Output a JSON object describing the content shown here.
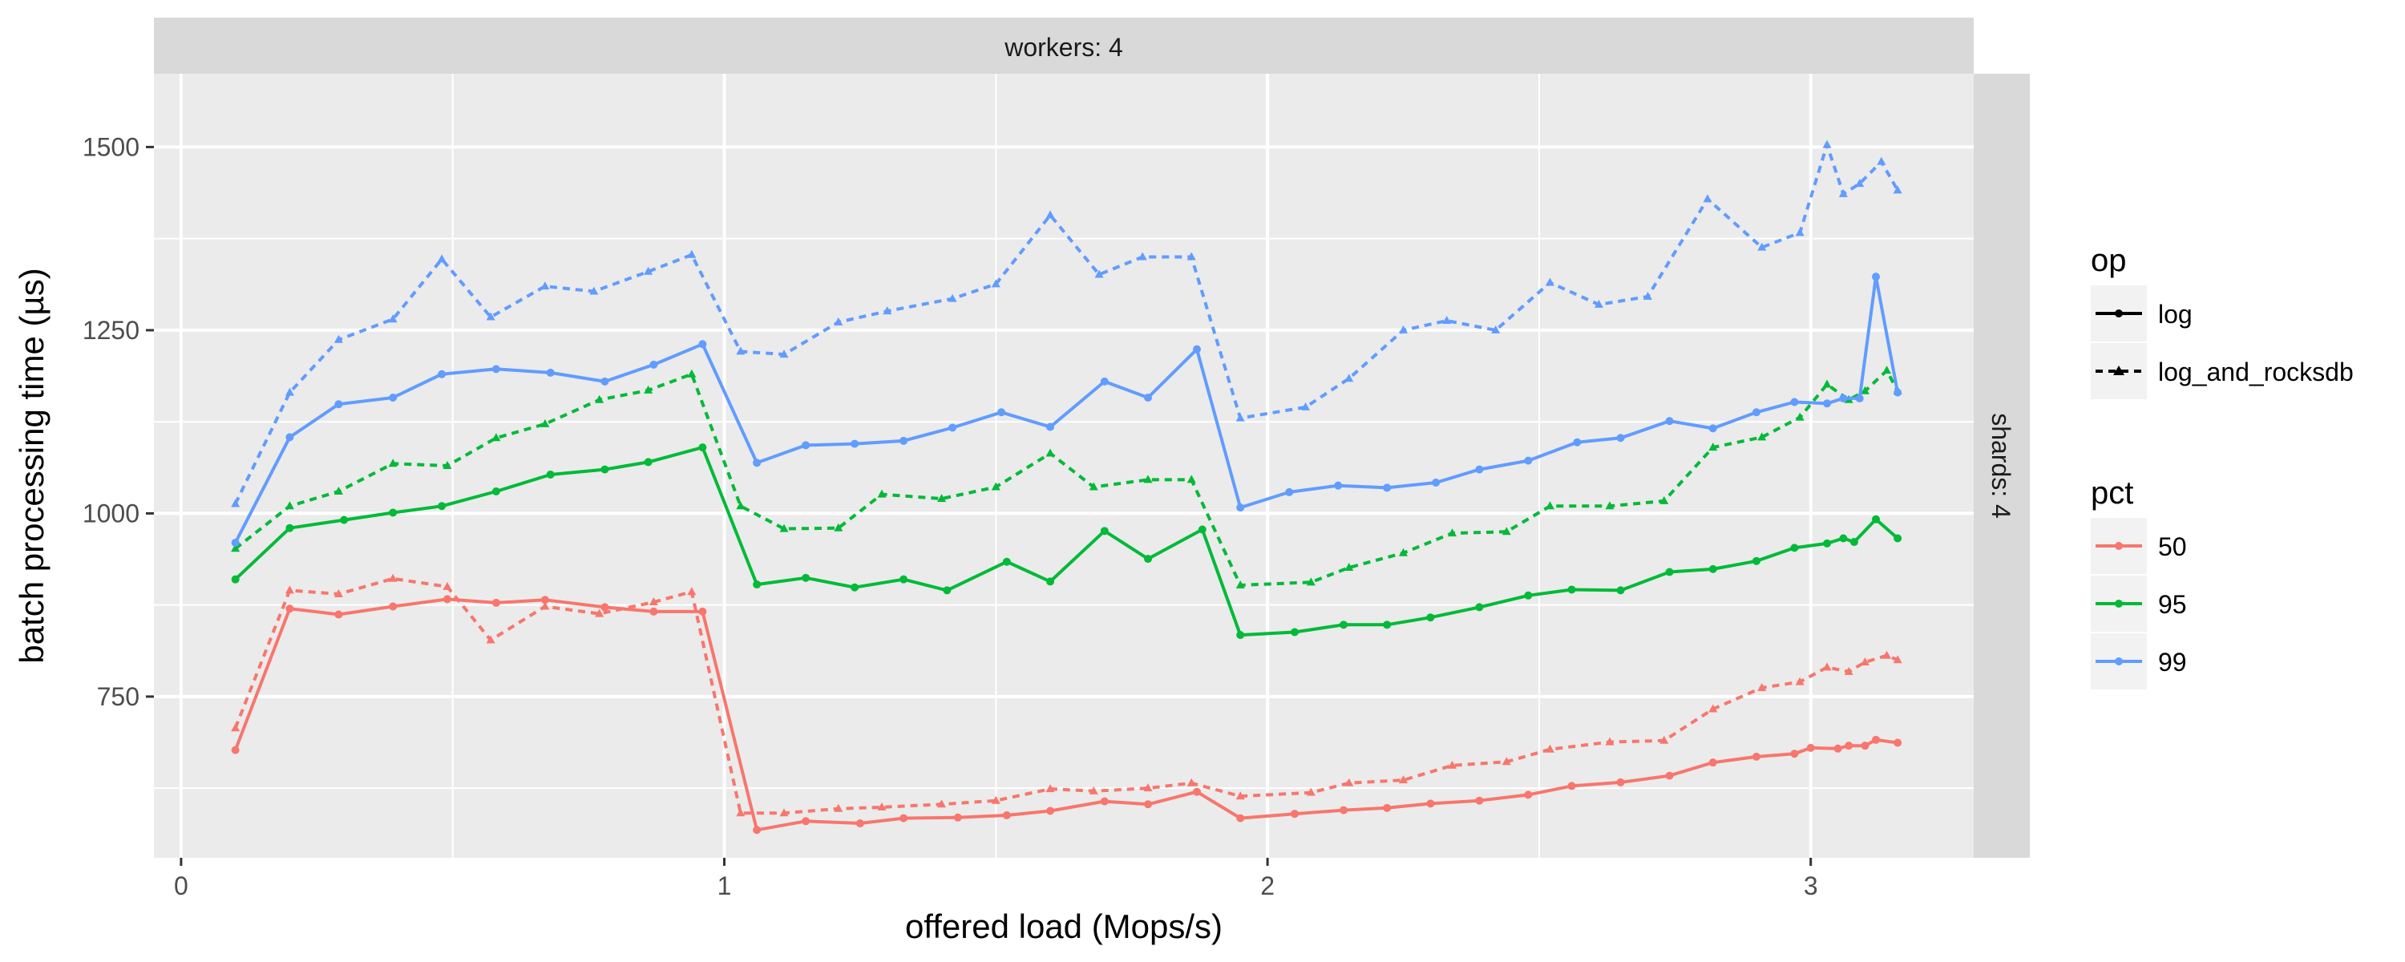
{
  "chart_data": {
    "type": "line",
    "xlabel": "offered load (Mops/s)",
    "ylabel": "batch processing time (µs)",
    "xlim": [
      -0.05,
      3.3
    ],
    "ylim": [
      530,
      1600
    ],
    "xticks": [
      0,
      1,
      2,
      3
    ],
    "yticks": [
      750,
      1000,
      1250,
      1500
    ],
    "grid": true,
    "facet": {
      "top": "workers: 4",
      "right": "shards: 4"
    },
    "legend": {
      "placement": "right",
      "op": {
        "title": "op",
        "entries": [
          "log",
          "log_and_rocksdb"
        ]
      },
      "pct": {
        "title": "pct",
        "entries": [
          "50",
          "95",
          "99"
        ]
      }
    },
    "colors": {
      "50": "#F8766D",
      "95": "#00BA38",
      "99": "#619CFF"
    },
    "series": [
      {
        "op": "log",
        "pct": "50",
        "x": [
          0.1,
          0.2,
          0.29,
          0.39,
          0.49,
          0.58,
          0.67,
          0.78,
          0.87,
          0.96,
          1.06,
          1.15,
          1.25,
          1.33,
          1.43,
          1.52,
          1.6,
          1.7,
          1.78,
          1.87,
          1.95,
          2.05,
          2.14,
          2.22,
          2.3,
          2.39,
          2.48,
          2.56,
          2.65,
          2.74,
          2.82,
          2.9,
          2.97,
          3.0,
          3.05,
          3.07,
          3.1,
          3.12,
          3.16
        ],
        "y": [
          677,
          870,
          862,
          873,
          883,
          878,
          882,
          872,
          866,
          866,
          568,
          580,
          577,
          584,
          585,
          588,
          594,
          607,
          603,
          620,
          584,
          590,
          595,
          598,
          604,
          608,
          616,
          628,
          633,
          642,
          660,
          668,
          672,
          680,
          679,
          683,
          683,
          691,
          687
        ]
      },
      {
        "op": "log_and_rocksdb",
        "pct": "50",
        "x": [
          0.1,
          0.2,
          0.29,
          0.39,
          0.49,
          0.57,
          0.67,
          0.77,
          0.87,
          0.94,
          1.03,
          1.11,
          1.21,
          1.29,
          1.4,
          1.5,
          1.6,
          1.68,
          1.78,
          1.86,
          1.95,
          2.08,
          2.15,
          2.25,
          2.34,
          2.44,
          2.52,
          2.63,
          2.73,
          2.82,
          2.91,
          2.98,
          3.03,
          3.07,
          3.1,
          3.14,
          3.16
        ],
        "y": [
          707,
          895,
          890,
          911,
          900,
          827,
          873,
          863,
          879,
          893,
          591,
          591,
          597,
          599,
          603,
          608,
          624,
          621,
          625,
          632,
          614,
          619,
          632,
          636,
          656,
          661,
          678,
          688,
          690,
          733,
          762,
          770,
          790,
          784,
          797,
          806,
          800
        ]
      },
      {
        "op": "log",
        "pct": "95",
        "x": [
          0.1,
          0.2,
          0.3,
          0.39,
          0.48,
          0.58,
          0.68,
          0.78,
          0.86,
          0.96,
          1.06,
          1.15,
          1.24,
          1.33,
          1.41,
          1.52,
          1.6,
          1.7,
          1.78,
          1.88,
          1.95,
          2.05,
          2.14,
          2.22,
          2.3,
          2.39,
          2.48,
          2.56,
          2.65,
          2.74,
          2.82,
          2.9,
          2.97,
          3.03,
          3.06,
          3.08,
          3.12,
          3.16
        ],
        "y": [
          910,
          980,
          991,
          1001,
          1010,
          1030,
          1053,
          1060,
          1070,
          1090,
          903,
          912,
          899,
          910,
          895,
          934,
          907,
          976,
          938,
          978,
          834,
          838,
          848,
          848,
          858,
          872,
          888,
          896,
          895,
          920,
          924,
          935,
          953,
          959,
          966,
          961,
          992,
          966
        ]
      },
      {
        "op": "log_and_rocksdb",
        "pct": "95",
        "x": [
          0.1,
          0.2,
          0.29,
          0.39,
          0.49,
          0.58,
          0.67,
          0.77,
          0.86,
          0.94,
          1.03,
          1.11,
          1.21,
          1.29,
          1.4,
          1.5,
          1.6,
          1.68,
          1.78,
          1.86,
          1.95,
          2.08,
          2.15,
          2.25,
          2.34,
          2.44,
          2.52,
          2.63,
          2.73,
          2.82,
          2.91,
          2.98,
          3.03,
          3.07,
          3.1,
          3.14,
          3.16
        ],
        "y": [
          952,
          1010,
          1030,
          1068,
          1065,
          1103,
          1122,
          1155,
          1168,
          1190,
          1010,
          979,
          980,
          1026,
          1020,
          1036,
          1082,
          1036,
          1046,
          1046,
          902,
          906,
          926,
          946,
          973,
          975,
          1010,
          1010,
          1017,
          1090,
          1104,
          1131,
          1176,
          1155,
          1167,
          1195,
          1167
        ]
      },
      {
        "op": "log",
        "pct": "99",
        "x": [
          0.1,
          0.2,
          0.29,
          0.39,
          0.48,
          0.58,
          0.68,
          0.78,
          0.87,
          0.96,
          1.06,
          1.15,
          1.24,
          1.33,
          1.42,
          1.51,
          1.6,
          1.7,
          1.78,
          1.87,
          1.95,
          2.04,
          2.13,
          2.22,
          2.31,
          2.39,
          2.48,
          2.57,
          2.65,
          2.74,
          2.82,
          2.9,
          2.97,
          3.03,
          3.06,
          3.09,
          3.12,
          3.16
        ],
        "y": [
          960,
          1104,
          1149,
          1158,
          1190,
          1197,
          1192,
          1180,
          1203,
          1231,
          1069,
          1093,
          1095,
          1099,
          1117,
          1138,
          1118,
          1180,
          1158,
          1224,
          1008,
          1029,
          1038,
          1035,
          1042,
          1060,
          1072,
          1097,
          1103,
          1126,
          1116,
          1138,
          1152,
          1150,
          1157,
          1157,
          1323,
          1165
        ]
      },
      {
        "op": "log_and_rocksdb",
        "pct": "99",
        "x": [
          0.1,
          0.2,
          0.29,
          0.39,
          0.48,
          0.57,
          0.67,
          0.76,
          0.86,
          0.94,
          1.03,
          1.11,
          1.21,
          1.3,
          1.42,
          1.5,
          1.6,
          1.69,
          1.77,
          1.86,
          1.95,
          2.07,
          2.15,
          2.25,
          2.33,
          2.42,
          2.52,
          2.61,
          2.7,
          2.81,
          2.91,
          2.98,
          3.03,
          3.06,
          3.09,
          3.13,
          3.16
        ],
        "y": [
          1013,
          1165,
          1237,
          1265,
          1347,
          1268,
          1310,
          1303,
          1330,
          1353,
          1221,
          1217,
          1261,
          1276,
          1293,
          1313,
          1407,
          1326,
          1350,
          1350,
          1130,
          1145,
          1184,
          1250,
          1263,
          1250,
          1315,
          1285,
          1296,
          1429,
          1363,
          1383,
          1503,
          1436,
          1450,
          1480,
          1441
        ]
      }
    ]
  }
}
